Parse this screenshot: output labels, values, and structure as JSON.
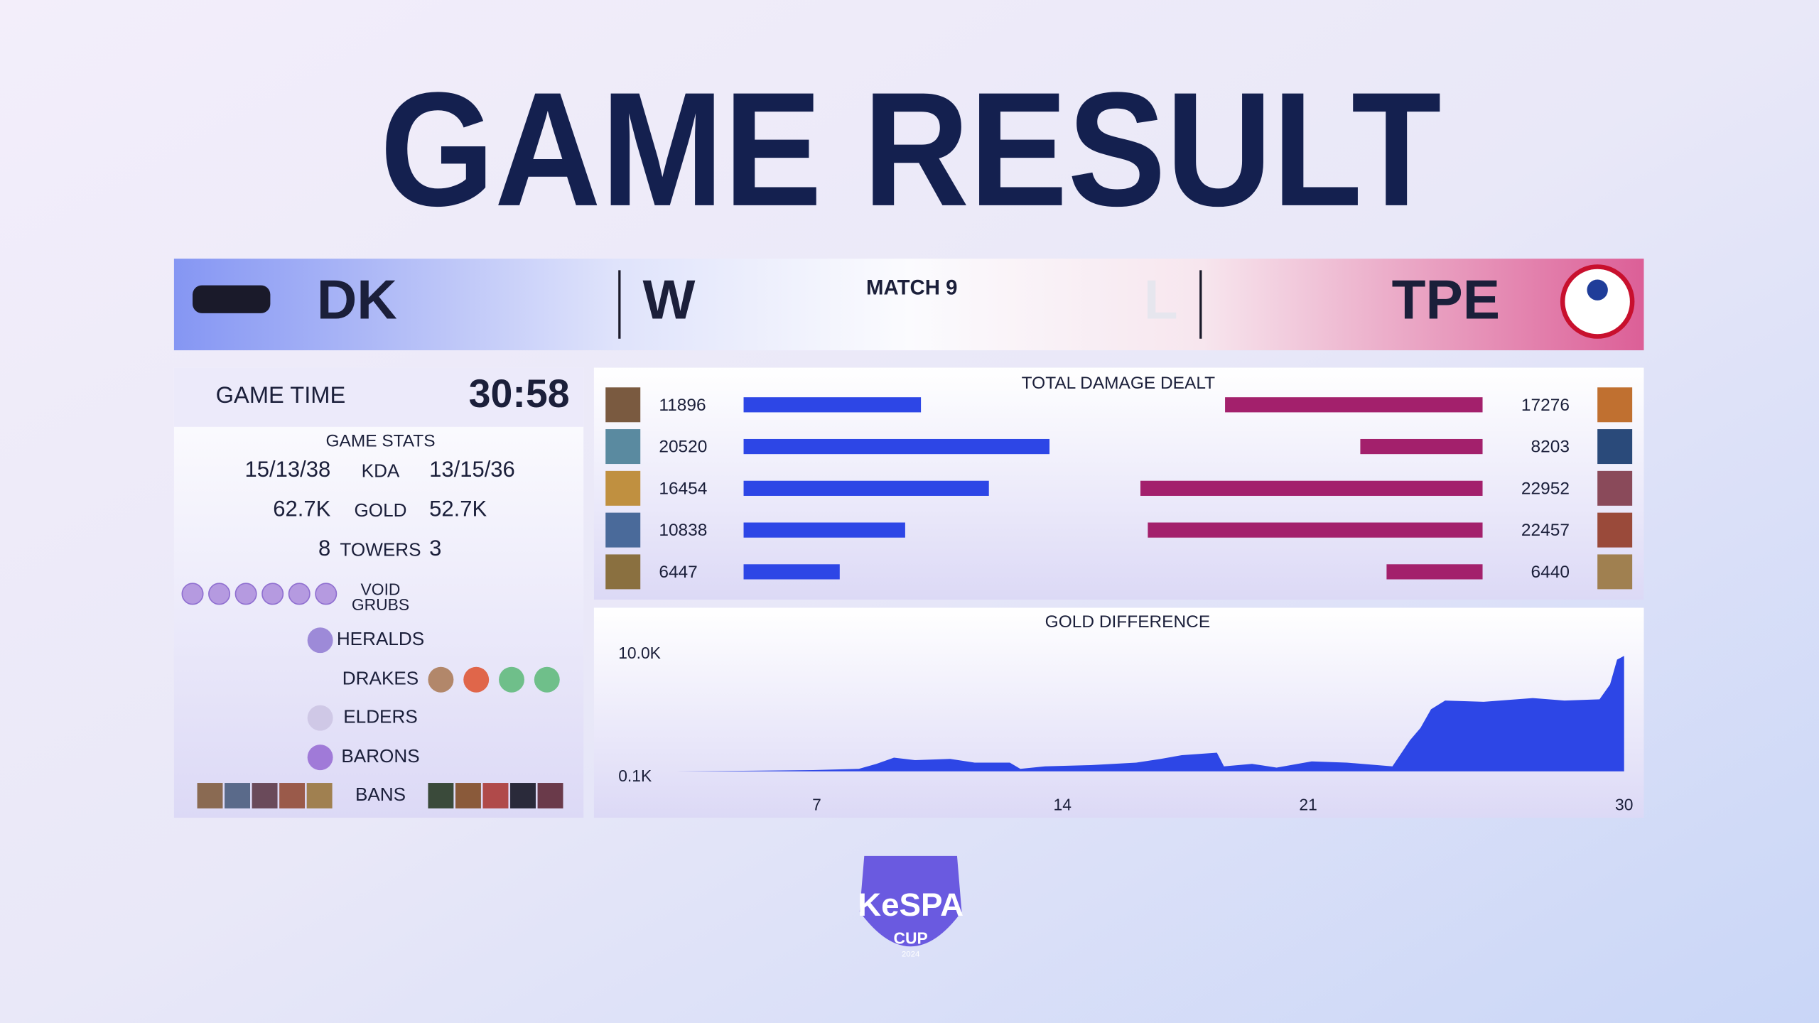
{
  "title": "GAME RESULT",
  "header": {
    "left_team": "DK",
    "left_result": "W",
    "match": "MATCH 9",
    "right_result": "L",
    "right_team": "TPE"
  },
  "game_time": {
    "label": "GAME TIME",
    "value": "30:58"
  },
  "game_stats": {
    "title": "GAME STATS",
    "rows": [
      {
        "left": "15/13/38",
        "label": "KDA",
        "right": "13/15/36"
      },
      {
        "left": "62.7K",
        "label": "GOLD",
        "right": "52.7K"
      },
      {
        "left": 8,
        "label": "TOWERS",
        "right": 3
      }
    ],
    "objectives": [
      "VOID GRUBS",
      "HERALDS",
      "DRAKES",
      "ELDERS",
      "BARONS",
      "BANS"
    ]
  },
  "damage": {
    "title": "TOTAL DAMAGE DEALT",
    "left": [
      11896,
      20520,
      16454,
      10838,
      6447
    ],
    "right": [
      17276,
      8203,
      22952,
      22457,
      6440
    ],
    "left_color": "#2d46e6",
    "right_color": "#a3206c"
  },
  "gold": {
    "title": "GOLD DIFFERENCE",
    "color": "#2d46e6",
    "x": [
      3.0,
      5.2,
      6.9,
      8.2,
      8.7,
      9.2,
      9.8,
      10.8,
      11.5,
      12.5,
      12.8,
      13.5,
      14.8,
      16.1,
      16.8,
      17.4,
      18.4,
      18.6,
      19.4,
      20.1,
      21.1,
      22.1,
      23.4,
      23.9,
      24.2,
      24.5,
      24.9,
      26.0,
      27.4,
      28.3,
      29.3,
      29.6,
      29.8,
      30.0
    ],
    "values": [
      0,
      50,
      100,
      200,
      600,
      1100,
      900,
      1000,
      700,
      700,
      200,
      400,
      500,
      700,
      1000,
      1300,
      1500,
      400,
      600,
      300,
      800,
      700,
      400,
      2500,
      3500,
      5000,
      5700,
      5600,
      5900,
      5700,
      5800,
      7000,
      9000,
      9300
    ],
    "xlim": [
      3,
      30
    ],
    "ylim": [
      0,
      10000
    ],
    "yticks": [
      {
        "value": 10000,
        "label": "10.0K"
      },
      {
        "value": 100,
        "label": "0.1K"
      }
    ],
    "xticks": [
      7,
      14,
      21,
      30
    ]
  },
  "logo": {
    "name": "KeSPA",
    "sub": "CUP",
    "year": "2024"
  }
}
